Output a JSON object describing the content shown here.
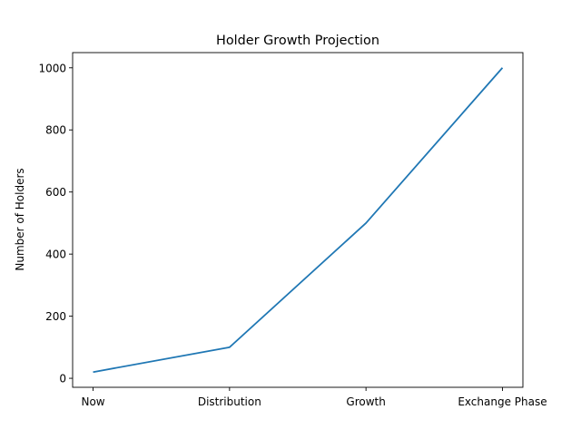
{
  "chart_data": {
    "type": "line",
    "title": "Holder Growth Projection",
    "xlabel": "",
    "ylabel": "Number of Holders",
    "categories": [
      "Now",
      "Distribution",
      "Growth",
      "Exchange Phase"
    ],
    "values": [
      20,
      100,
      500,
      1000
    ],
    "ylim": [
      -29,
      1049
    ],
    "yticks": [
      0,
      200,
      400,
      600,
      800,
      1000
    ],
    "grid": false,
    "line_color": "#1f77b4"
  }
}
